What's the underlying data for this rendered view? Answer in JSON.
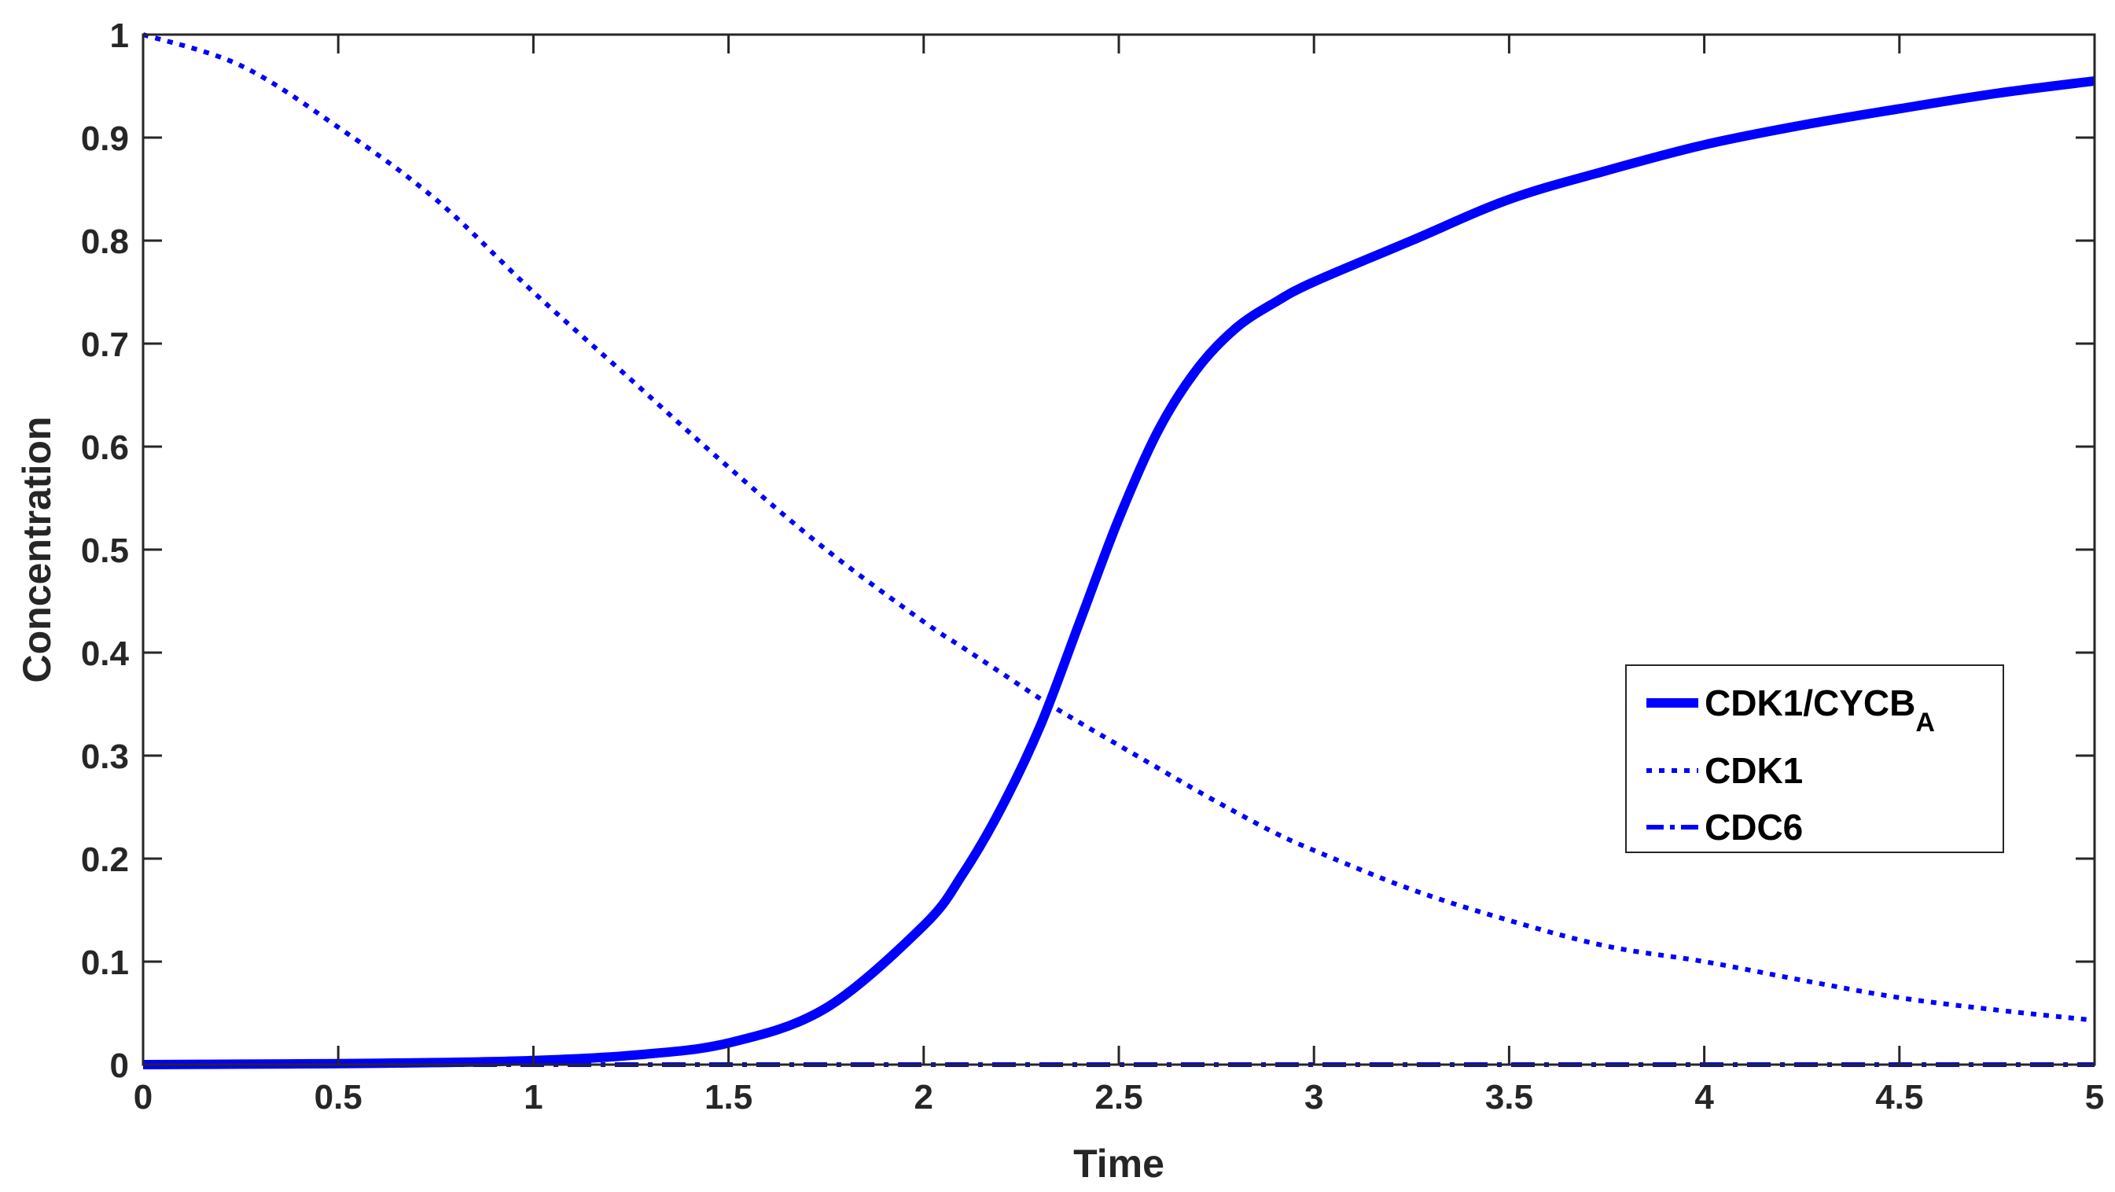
{
  "chart_data": {
    "type": "line",
    "xlabel": "Time",
    "ylabel": "Concentration",
    "xlim": [
      0,
      5
    ],
    "ylim": [
      0,
      1
    ],
    "grid": false,
    "box": true,
    "legend_position": "right",
    "x_ticks": [
      "0",
      "0.5",
      "1",
      "1.5",
      "2",
      "2.5",
      "3",
      "3.5",
      "4",
      "4.5",
      "5"
    ],
    "y_ticks": [
      "0",
      "0.1",
      "0.2",
      "0.3",
      "0.4",
      "0.5",
      "0.6",
      "0.7",
      "0.8",
      "0.9",
      "1"
    ],
    "x": [
      0,
      0.25,
      0.5,
      0.75,
      1,
      1.25,
      1.5,
      1.75,
      2,
      2.1,
      2.2,
      2.3,
      2.4,
      2.5,
      2.6,
      2.7,
      2.8,
      2.9,
      3,
      3.25,
      3.5,
      3.75,
      4,
      4.25,
      4.5,
      4.75,
      5
    ],
    "series": [
      {
        "name": "CDK1/CYCB",
        "name_subscript": "A",
        "style": "solid",
        "color": "#0000ff",
        "values": [
          0,
          0.0005,
          0.001,
          0.002,
          0.004,
          0.009,
          0.021,
          0.055,
          0.135,
          0.185,
          0.25,
          0.33,
          0.43,
          0.53,
          0.615,
          0.675,
          0.715,
          0.74,
          0.76,
          0.8,
          0.84,
          0.868,
          0.893,
          0.912,
          0.928,
          0.943,
          0.955
        ]
      },
      {
        "name": "CDK1",
        "style": "dotted",
        "color": "#0000ff",
        "values": [
          1,
          0.97,
          0.91,
          0.84,
          0.75,
          0.665,
          0.58,
          0.5,
          0.43,
          0.405,
          0.38,
          0.355,
          0.332,
          0.31,
          0.288,
          0.266,
          0.245,
          0.225,
          0.208,
          0.17,
          0.14,
          0.115,
          0.1,
          0.082,
          0.065,
          0.053,
          0.043
        ]
      },
      {
        "name": "CDC6",
        "style": "dashdot",
        "color": "#0000ff",
        "values": [
          0,
          0,
          0,
          0,
          0,
          0,
          0,
          0,
          0,
          0,
          0,
          0,
          0,
          0,
          0,
          0,
          0,
          0,
          0,
          0,
          0,
          0,
          0,
          0,
          0,
          0,
          0
        ]
      }
    ]
  }
}
